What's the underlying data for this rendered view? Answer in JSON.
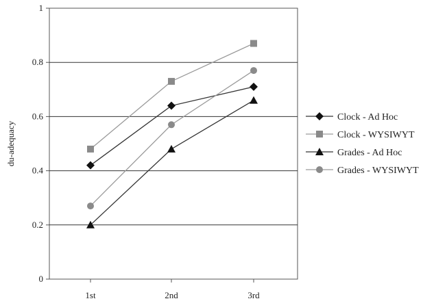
{
  "chart_data": {
    "type": "line",
    "title": "",
    "xlabel": "",
    "ylabel": "du-adequacy",
    "categories": [
      "1st",
      "2nd",
      "3rd"
    ],
    "ylim": [
      0,
      1
    ],
    "yticks": [
      0,
      0.2,
      0.4,
      0.6,
      0.8,
      1
    ],
    "ytick_labels": [
      "0",
      "0.2",
      "0.4",
      "0.6",
      "0.8",
      "1"
    ],
    "grid": true,
    "legend_position": "right",
    "series": [
      {
        "name": "Clock - Ad Hoc",
        "values": [
          0.42,
          0.64,
          0.71
        ],
        "color": "#111111",
        "line_color": "#333333",
        "marker": "diamond"
      },
      {
        "name": "Clock - WYSIWYT",
        "values": [
          0.48,
          0.73,
          0.87
        ],
        "color": "#8a8a8a",
        "line_color": "#9a9a9a",
        "marker": "square"
      },
      {
        "name": "Grades - Ad Hoc",
        "values": [
          0.2,
          0.48,
          0.66
        ],
        "color": "#111111",
        "line_color": "#333333",
        "marker": "triangle"
      },
      {
        "name": "Grades - WYSIWYT",
        "values": [
          0.27,
          0.57,
          0.77
        ],
        "color": "#8a8a8a",
        "line_color": "#9a9a9a",
        "marker": "circle"
      }
    ]
  }
}
